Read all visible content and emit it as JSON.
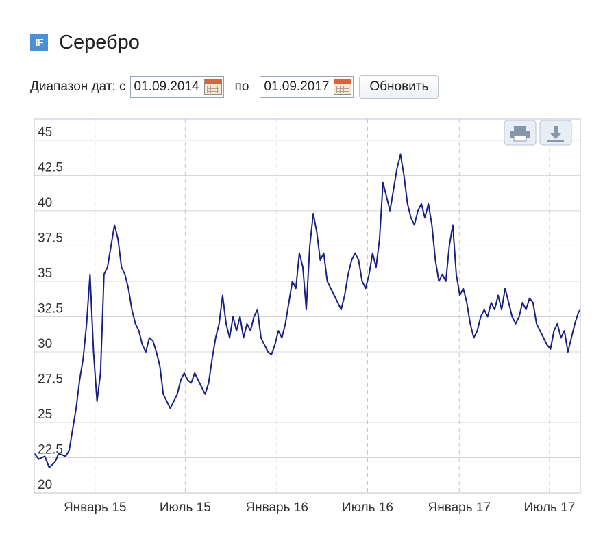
{
  "header": {
    "title": "Серебро",
    "logo_text": "IF"
  },
  "controls": {
    "range_label": "Диапазон дат: с",
    "date_from": "01.09.2014",
    "sep_label": "по",
    "date_to": "01.09.2017",
    "refresh_label": "Обновить"
  },
  "chart_data": {
    "type": "line",
    "title": "",
    "xlabel": "",
    "ylabel": "",
    "x_start": "01.09.2014",
    "x_end": "01.09.2017",
    "y_ticks": [
      "45",
      "42.5",
      "40",
      "37.5",
      "35",
      "32.5",
      "30",
      "27.5",
      "25",
      "22.5",
      "20"
    ],
    "x_ticks": [
      "Январь 15",
      "Июль 15",
      "Январь 16",
      "Июль 16",
      "Январь 17",
      "Июль 17"
    ],
    "ylim": [
      20,
      46.5
    ],
    "line_color": "#1a2080",
    "grid": true,
    "series": [
      {
        "name": "",
        "points": [
          [
            "2014-09-01",
            22.8
          ],
          [
            "2014-09-10",
            22.4
          ],
          [
            "2014-09-22",
            22.6
          ],
          [
            "2014-10-01",
            21.8
          ],
          [
            "2014-10-13",
            22.2
          ],
          [
            "2014-10-20",
            22.8
          ],
          [
            "2014-11-03",
            22.6
          ],
          [
            "2014-11-10",
            23.0
          ],
          [
            "2014-11-17",
            24.5
          ],
          [
            "2014-11-24",
            26.0
          ],
          [
            "2014-12-01",
            28.0
          ],
          [
            "2014-12-08",
            29.5
          ],
          [
            "2014-12-15",
            32.0
          ],
          [
            "2014-12-22",
            35.5
          ],
          [
            "2014-12-29",
            30.0
          ],
          [
            "2015-01-05",
            26.5
          ],
          [
            "2015-01-12",
            28.5
          ],
          [
            "2015-01-19",
            35.5
          ],
          [
            "2015-01-26",
            36.0
          ],
          [
            "2015-02-02",
            37.5
          ],
          [
            "2015-02-09",
            39.0
          ],
          [
            "2015-02-16",
            38.0
          ],
          [
            "2015-02-23",
            36.0
          ],
          [
            "2015-03-02",
            35.5
          ],
          [
            "2015-03-09",
            34.5
          ],
          [
            "2015-03-16",
            33.0
          ],
          [
            "2015-03-23",
            32.0
          ],
          [
            "2015-03-30",
            31.5
          ],
          [
            "2015-04-06",
            30.5
          ],
          [
            "2015-04-13",
            30.0
          ],
          [
            "2015-04-20",
            31.0
          ],
          [
            "2015-04-27",
            30.8
          ],
          [
            "2015-05-04",
            30.0
          ],
          [
            "2015-05-11",
            29.0
          ],
          [
            "2015-05-18",
            27.0
          ],
          [
            "2015-05-25",
            26.5
          ],
          [
            "2015-06-01",
            26.0
          ],
          [
            "2015-06-08",
            26.5
          ],
          [
            "2015-06-15",
            27.0
          ],
          [
            "2015-06-22",
            28.0
          ],
          [
            "2015-06-29",
            28.5
          ],
          [
            "2015-07-06",
            28.0
          ],
          [
            "2015-07-13",
            27.8
          ],
          [
            "2015-07-20",
            28.5
          ],
          [
            "2015-07-27",
            28.0
          ],
          [
            "2015-08-03",
            27.5
          ],
          [
            "2015-08-10",
            27.0
          ],
          [
            "2015-08-17",
            27.8
          ],
          [
            "2015-08-24",
            29.5
          ],
          [
            "2015-08-31",
            31.0
          ],
          [
            "2015-09-07",
            32.0
          ],
          [
            "2015-09-14",
            34.0
          ],
          [
            "2015-09-21",
            32.0
          ],
          [
            "2015-09-28",
            31.0
          ],
          [
            "2015-10-05",
            32.5
          ],
          [
            "2015-10-12",
            31.5
          ],
          [
            "2015-10-19",
            32.5
          ],
          [
            "2015-10-26",
            31.0
          ],
          [
            "2015-11-02",
            32.0
          ],
          [
            "2015-11-09",
            31.5
          ],
          [
            "2015-11-16",
            32.5
          ],
          [
            "2015-11-23",
            33.0
          ],
          [
            "2015-11-30",
            31.0
          ],
          [
            "2015-12-07",
            30.5
          ],
          [
            "2015-12-14",
            30.0
          ],
          [
            "2015-12-21",
            29.8
          ],
          [
            "2015-12-28",
            30.5
          ],
          [
            "2016-01-04",
            31.5
          ],
          [
            "2016-01-11",
            31.0
          ],
          [
            "2016-01-18",
            32.0
          ],
          [
            "2016-01-25",
            33.5
          ],
          [
            "2016-02-01",
            35.0
          ],
          [
            "2016-02-08",
            34.5
          ],
          [
            "2016-02-15",
            37.0
          ],
          [
            "2016-02-22",
            36.0
          ],
          [
            "2016-02-29",
            33.0
          ],
          [
            "2016-03-07",
            37.5
          ],
          [
            "2016-03-14",
            39.8
          ],
          [
            "2016-03-21",
            38.5
          ],
          [
            "2016-03-28",
            36.5
          ],
          [
            "2016-04-04",
            37.0
          ],
          [
            "2016-04-11",
            35.0
          ],
          [
            "2016-04-18",
            34.5
          ],
          [
            "2016-04-25",
            34.0
          ],
          [
            "2016-05-02",
            33.5
          ],
          [
            "2016-05-09",
            33.0
          ],
          [
            "2016-05-16",
            34.0
          ],
          [
            "2016-05-23",
            35.5
          ],
          [
            "2016-05-30",
            36.5
          ],
          [
            "2016-06-06",
            37.0
          ],
          [
            "2016-06-13",
            36.5
          ],
          [
            "2016-06-20",
            35.0
          ],
          [
            "2016-06-27",
            34.5
          ],
          [
            "2016-07-04",
            35.5
          ],
          [
            "2016-07-11",
            37.0
          ],
          [
            "2016-07-18",
            36.0
          ],
          [
            "2016-07-25",
            38.0
          ],
          [
            "2016-08-01",
            42.0
          ],
          [
            "2016-08-08",
            41.0
          ],
          [
            "2016-08-15",
            40.0
          ],
          [
            "2016-08-22",
            41.5
          ],
          [
            "2016-08-29",
            43.0
          ],
          [
            "2016-09-05",
            44.0
          ],
          [
            "2016-09-12",
            42.5
          ],
          [
            "2016-09-19",
            40.5
          ],
          [
            "2016-09-26",
            39.5
          ],
          [
            "2016-10-03",
            39.0
          ],
          [
            "2016-10-10",
            40.0
          ],
          [
            "2016-10-17",
            40.5
          ],
          [
            "2016-10-24",
            39.5
          ],
          [
            "2016-10-31",
            40.5
          ],
          [
            "2016-11-07",
            39.0
          ],
          [
            "2016-11-14",
            36.5
          ],
          [
            "2016-11-21",
            35.0
          ],
          [
            "2016-11-28",
            35.5
          ],
          [
            "2016-12-05",
            35.0
          ],
          [
            "2016-12-12",
            37.5
          ],
          [
            "2016-12-19",
            39.0
          ],
          [
            "2016-12-26",
            35.5
          ],
          [
            "2017-01-02",
            34.0
          ],
          [
            "2017-01-09",
            34.5
          ],
          [
            "2017-01-16",
            33.5
          ],
          [
            "2017-01-23",
            32.0
          ],
          [
            "2017-01-30",
            31.0
          ],
          [
            "2017-02-06",
            31.5
          ],
          [
            "2017-02-13",
            32.5
          ],
          [
            "2017-02-20",
            33.0
          ],
          [
            "2017-02-27",
            32.5
          ],
          [
            "2017-03-06",
            33.5
          ],
          [
            "2017-03-13",
            33.0
          ],
          [
            "2017-03-20",
            34.0
          ],
          [
            "2017-03-27",
            33.0
          ],
          [
            "2017-04-03",
            34.5
          ],
          [
            "2017-04-10",
            33.5
          ],
          [
            "2017-04-17",
            32.5
          ],
          [
            "2017-04-24",
            32.0
          ],
          [
            "2017-05-01",
            32.5
          ],
          [
            "2017-05-08",
            33.5
          ],
          [
            "2017-05-15",
            33.0
          ],
          [
            "2017-05-22",
            33.8
          ],
          [
            "2017-05-29",
            33.5
          ],
          [
            "2017-06-05",
            32.0
          ],
          [
            "2017-06-12",
            31.5
          ],
          [
            "2017-06-19",
            31.0
          ],
          [
            "2017-06-26",
            30.5
          ],
          [
            "2017-07-03",
            30.2
          ],
          [
            "2017-07-10",
            31.5
          ],
          [
            "2017-07-17",
            32.0
          ],
          [
            "2017-07-24",
            31.0
          ],
          [
            "2017-07-31",
            31.5
          ],
          [
            "2017-08-07",
            30.0
          ],
          [
            "2017-08-14",
            31.0
          ],
          [
            "2017-08-21",
            32.0
          ],
          [
            "2017-08-28",
            32.8
          ],
          [
            "2017-09-01",
            33.0
          ]
        ]
      }
    ]
  },
  "toolbar": {
    "print_icon": "printer-icon",
    "download_icon": "download-icon"
  }
}
